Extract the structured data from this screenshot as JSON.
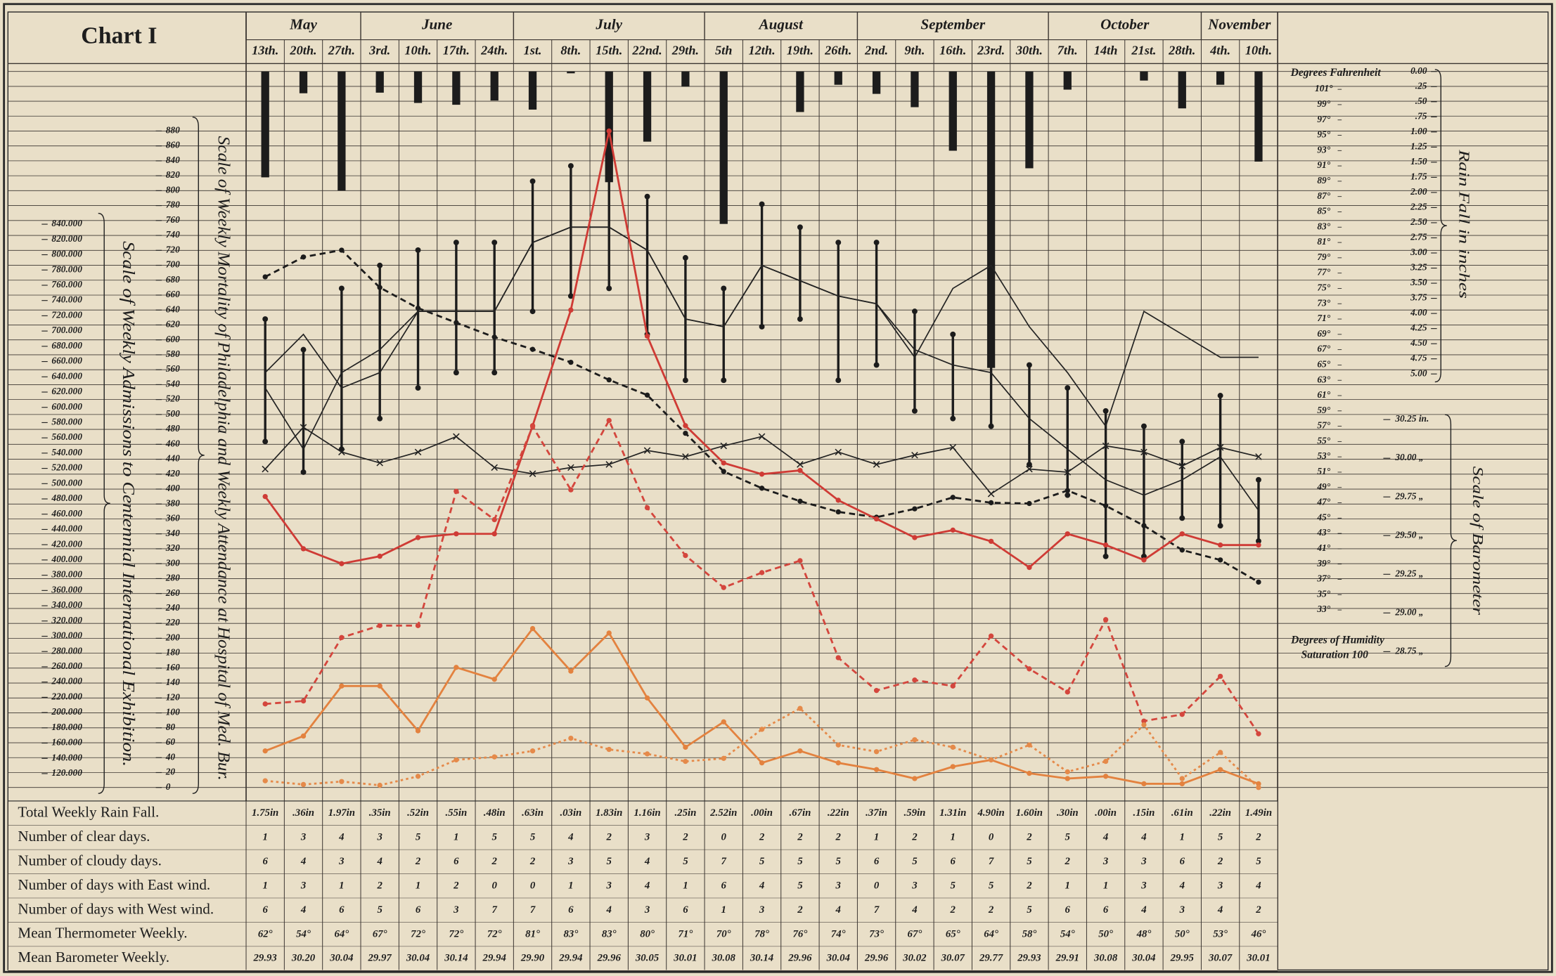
{
  "chart_data": {
    "type": "line",
    "title": "Chart I",
    "months": [
      {
        "name": "May",
        "weeks": 3
      },
      {
        "name": "June",
        "weeks": 4
      },
      {
        "name": "July",
        "weeks": 5
      },
      {
        "name": "August",
        "weeks": 4
      },
      {
        "name": "September",
        "weeks": 5
      },
      {
        "name": "October",
        "weeks": 4
      },
      {
        "name": "November",
        "weeks": 2
      }
    ],
    "categories": [
      "13th.",
      "20th.",
      "27th.",
      "3rd.",
      "10th.",
      "17th.",
      "24th.",
      "1st.",
      "8th.",
      "15th.",
      "22nd.",
      "29th.",
      "5th",
      "12th.",
      "19th.",
      "26th.",
      "2nd.",
      "9th.",
      "16th.",
      "23rd.",
      "30th.",
      "7th.",
      "14th",
      "21st.",
      "28th.",
      "4th.",
      "10th."
    ],
    "axes": {
      "mortality": {
        "title": "Scale of Weekly Mortality of Philadelphia and Weekly Attendance at Hospital of Med. Bur.",
        "lim": [
          0,
          880
        ],
        "ticks": [
          880,
          860,
          840,
          820,
          800,
          780,
          760,
          740,
          720,
          700,
          680,
          660,
          640,
          620,
          600,
          580,
          560,
          540,
          520,
          500,
          480,
          460,
          440,
          420,
          400,
          380,
          360,
          340,
          320,
          300,
          280,
          260,
          240,
          220,
          200,
          180,
          160,
          140,
          120,
          100,
          80,
          60,
          40,
          20,
          0
        ]
      },
      "admissions": {
        "title": "Scale of Weekly Admissions to Centennial International Exhibition.",
        "lim": [
          120000,
          840000
        ],
        "ticks": [
          {
            "value": 840000,
            "label": "840.000"
          },
          {
            "value": 820000,
            "label": "820.000"
          },
          {
            "value": 800000,
            "label": "800.000"
          },
          {
            "value": 780000,
            "label": "780.000"
          },
          {
            "value": 760000,
            "label": "760.000"
          },
          {
            "value": 740000,
            "label": "740.000"
          },
          {
            "value": 720000,
            "label": "720.000"
          },
          {
            "value": 700000,
            "label": "700.000"
          },
          {
            "value": 680000,
            "label": "680.000"
          },
          {
            "value": 660000,
            "label": "660.000"
          },
          {
            "value": 640000,
            "label": "640.000"
          },
          {
            "value": 620000,
            "label": "620.000"
          },
          {
            "value": 600000,
            "label": "600.000"
          },
          {
            "value": 580000,
            "label": "580.000"
          },
          {
            "value": 560000,
            "label": "560.000"
          },
          {
            "value": 540000,
            "label": "540.000"
          },
          {
            "value": 520000,
            "label": "520.000"
          },
          {
            "value": 500000,
            "label": "500.000"
          },
          {
            "value": 480000,
            "label": "480.000"
          },
          {
            "value": 460000,
            "label": "460.000"
          },
          {
            "value": 440000,
            "label": "440.000"
          },
          {
            "value": 420000,
            "label": "420.000"
          },
          {
            "value": 400000,
            "label": "400.000"
          },
          {
            "value": 380000,
            "label": "380.000"
          },
          {
            "value": 360000,
            "label": "360.000"
          },
          {
            "value": 340000,
            "label": "340.000"
          },
          {
            "value": 320000,
            "label": "320.000"
          },
          {
            "value": 300000,
            "label": "300.000"
          },
          {
            "value": 280000,
            "label": "280.000"
          },
          {
            "value": 260000,
            "label": "260.000"
          },
          {
            "value": 240000,
            "label": "240.000"
          },
          {
            "value": 220000,
            "label": "220.000"
          },
          {
            "value": 200000,
            "label": "200.000"
          },
          {
            "value": 180000,
            "label": "180.000"
          },
          {
            "value": 160000,
            "label": "160.000"
          },
          {
            "value": 140000,
            "label": "140.000"
          },
          {
            "value": 120000,
            "label": "120.000"
          }
        ]
      },
      "fahrenheit": {
        "title": "Degrees Fahrenheit",
        "lim": [
          33,
          101
        ],
        "ticks": [
          {
            "value": 101,
            "label": "101°"
          },
          {
            "value": 99,
            "label": "99°"
          },
          {
            "value": 97,
            "label": "97°"
          },
          {
            "value": 95,
            "label": "95°"
          },
          {
            "value": 93,
            "label": "93°"
          },
          {
            "value": 91,
            "label": "91°"
          },
          {
            "value": 89,
            "label": "89°"
          },
          {
            "value": 87,
            "label": "87°"
          },
          {
            "value": 85,
            "label": "85°"
          },
          {
            "value": 83,
            "label": "83°"
          },
          {
            "value": 81,
            "label": "81°"
          },
          {
            "value": 79,
            "label": "79°"
          },
          {
            "value": 77,
            "label": "77°"
          },
          {
            "value": 75,
            "label": "75°"
          },
          {
            "value": 73,
            "label": "73°"
          },
          {
            "value": 71,
            "label": "71°"
          },
          {
            "value": 69,
            "label": "69°"
          },
          {
            "value": 67,
            "label": "67°"
          },
          {
            "value": 65,
            "label": "65°"
          },
          {
            "value": 63,
            "label": "63°"
          },
          {
            "value": 61,
            "label": "61°"
          },
          {
            "value": 59,
            "label": "59°"
          },
          {
            "value": 57,
            "label": "57°"
          },
          {
            "value": 55,
            "label": "55°"
          },
          {
            "value": 53,
            "label": "53°"
          },
          {
            "value": 51,
            "label": "51°"
          },
          {
            "value": 49,
            "label": "49°"
          },
          {
            "value": 47,
            "label": "47°"
          },
          {
            "value": 45,
            "label": "45°"
          },
          {
            "value": 43,
            "label": "43°"
          },
          {
            "value": 41,
            "label": "41°"
          },
          {
            "value": 39,
            "label": "39°"
          },
          {
            "value": 37,
            "label": "37°"
          },
          {
            "value": 35,
            "label": "35°"
          },
          {
            "value": 33,
            "label": "33°"
          }
        ]
      },
      "rain": {
        "title": "Rain Fall in inches",
        "lim": [
          0,
          5
        ],
        "ticks": [
          {
            "value": 0,
            "label": "0.00"
          },
          {
            "value": 0.25,
            "label": ".25"
          },
          {
            "value": 0.5,
            "label": ".50"
          },
          {
            "value": 0.75,
            "label": ".75"
          },
          {
            "value": 1,
            "label": "1.00"
          },
          {
            "value": 1.25,
            "label": "1.25"
          },
          {
            "value": 1.5,
            "label": "1.50"
          },
          {
            "value": 1.75,
            "label": "1.75"
          },
          {
            "value": 2,
            "label": "2.00"
          },
          {
            "value": 2.25,
            "label": "2.25"
          },
          {
            "value": 2.5,
            "label": "2.50"
          },
          {
            "value": 2.75,
            "label": "2.75"
          },
          {
            "value": 3,
            "label": "3.00"
          },
          {
            "value": 3.25,
            "label": "3.25"
          },
          {
            "value": 3.5,
            "label": "3.50"
          },
          {
            "value": 3.75,
            "label": "3.75"
          },
          {
            "value": 4,
            "label": "4.00"
          },
          {
            "value": 4.25,
            "label": "4.25"
          },
          {
            "value": 4.5,
            "label": "4.50"
          },
          {
            "value": 4.75,
            "label": "4.75"
          },
          {
            "value": 5,
            "label": "5.00"
          }
        ]
      },
      "barometer": {
        "title": "Scale of Barometer",
        "lim": [
          28.75,
          30.25
        ],
        "ticks": [
          {
            "value": 30.25,
            "label": "30.25 in."
          },
          {
            "value": 30,
            "label": "30.00 „"
          },
          {
            "value": 29.75,
            "label": "29.75 „"
          },
          {
            "value": 29.5,
            "label": "29.50 „"
          },
          {
            "value": 29.25,
            "label": "29.25 „"
          },
          {
            "value": 29,
            "label": "29.00 „"
          },
          {
            "value": 28.75,
            "label": "28.75 „"
          }
        ]
      }
    },
    "humidity_caption": [
      "Degrees of Humidity",
      "Saturation 100"
    ],
    "series": [
      {
        "type": "bar",
        "axis": "rain",
        "color": "#1c1c1c",
        "values": [
          1.75,
          0.36,
          1.97,
          0.35,
          0.52,
          0.55,
          0.48,
          0.63,
          0.03,
          1.83,
          1.16,
          0.25,
          2.52,
          0,
          0.67,
          0.22,
          0.37,
          0.59,
          1.31,
          4.9,
          1.6,
          0.3,
          0,
          0.15,
          0.61,
          0.22,
          1.49
        ]
      },
      {
        "type": "range",
        "axis": "fahrenheit",
        "color": "#1c1c1c",
        "high": [
          71,
          67,
          75,
          78,
          80,
          81,
          81,
          89,
          91,
          95,
          87,
          79,
          75,
          86,
          83,
          81,
          81,
          72,
          69,
          69,
          65,
          62,
          59,
          57,
          55,
          61,
          50
        ],
        "low": [
          55,
          51,
          54,
          58,
          62,
          64,
          64,
          72,
          74,
          75,
          69,
          63,
          63,
          70,
          71,
          63,
          65,
          59,
          58,
          57,
          52,
          48,
          40,
          40,
          45,
          44,
          42
        ]
      },
      {
        "type": "line",
        "axis": "fahrenheit",
        "color": "#222222",
        "style": "solid",
        "marker": "none",
        "values": [
          62,
          54,
          64,
          67,
          72,
          72,
          72,
          81,
          83,
          83,
          80,
          71,
          70,
          78,
          76,
          74,
          73,
          67,
          65,
          64,
          58,
          54,
          50,
          48,
          50,
          53,
          46
        ]
      },
      {
        "type": "line",
        "axis": "fahrenheit",
        "color": "#222222",
        "style": "solid",
        "marker": "none",
        "values": [
          64,
          69,
          62,
          64,
          72,
          72,
          72,
          81,
          83,
          83,
          80,
          71,
          70,
          78,
          76,
          74,
          73,
          66,
          75,
          78,
          70,
          64,
          57,
          72,
          69,
          66,
          66
        ]
      },
      {
        "type": "line",
        "axis": "barometer",
        "color": "#222222",
        "style": "solid",
        "marker": "x",
        "values": [
          29.93,
          30.2,
          30.04,
          29.97,
          30.04,
          30.14,
          29.94,
          29.9,
          29.94,
          29.96,
          30.05,
          30.01,
          30.08,
          30.14,
          29.96,
          30.04,
          29.96,
          30.02,
          30.07,
          29.77,
          29.93,
          29.91,
          30.08,
          30.04,
          29.95,
          30.07,
          30.01
        ]
      },
      {
        "type": "line",
        "axis": "admissions",
        "color": "#1c1c1c",
        "style": "dashed",
        "marker": "dot",
        "values": [
          771000,
          797000,
          806000,
          757000,
          730000,
          711000,
          692000,
          676000,
          659000,
          636000,
          616000,
          566000,
          516000,
          494000,
          477000,
          463000,
          456000,
          467000,
          482000,
          475000,
          474000,
          491000,
          471000,
          445000,
          413000,
          400000,
          371000
        ]
      },
      {
        "type": "line",
        "axis": "mortality",
        "color": "#cf3b35",
        "style": "solid",
        "marker": "dot",
        "values": [
          390,
          320,
          300,
          310,
          335,
          340,
          340,
          485,
          640,
          880,
          605,
          485,
          435,
          420,
          425,
          385,
          360,
          335,
          345,
          330,
          295,
          340,
          325,
          305,
          340,
          325,
          325
        ]
      },
      {
        "type": "line",
        "axis": "mortality",
        "color": "#d4463d",
        "style": "dashed",
        "marker": "dot",
        "values": [
          112,
          116,
          201,
          217,
          217,
          397,
          359,
          484,
          399,
          492,
          375,
          311,
          268,
          288,
          304,
          174,
          130,
          144,
          136,
          203,
          159,
          128,
          225,
          89,
          98,
          149,
          72
        ]
      },
      {
        "type": "line",
        "axis": "mortality",
        "color": "#e3823f",
        "style": "solid",
        "marker": "dot",
        "values": [
          49,
          69,
          136,
          136,
          76,
          161,
          145,
          213,
          156,
          207,
          120,
          54,
          88,
          33,
          49,
          33,
          24,
          12,
          28,
          37,
          19,
          12,
          15,
          5,
          5,
          24,
          5
        ]
      },
      {
        "type": "line",
        "axis": "mortality",
        "color": "#e58a4a",
        "style": "dotted",
        "marker": "dot",
        "values": [
          9,
          4,
          8,
          3,
          15,
          37,
          41,
          49,
          66,
          51,
          45,
          35,
          39,
          78,
          106,
          57,
          48,
          64,
          54,
          37,
          57,
          21,
          35,
          84,
          12,
          47,
          0
        ]
      }
    ]
  },
  "table": {
    "row_labels": [
      "Total Weekly Rain Fall.",
      "Number of clear days.",
      "Number of cloudy days.",
      "Number of days with East wind.",
      "Number of days with West wind.",
      "Mean Thermometer Weekly.",
      "Mean Barometer Weekly."
    ],
    "rows": [
      [
        "1.75in",
        ".36in",
        "1.97in",
        ".35in",
        ".52in",
        ".55in",
        ".48in",
        ".63in",
        ".03in",
        "1.83in",
        "1.16in",
        ".25in",
        "2.52in",
        ".00in",
        ".67in",
        ".22in",
        ".37in",
        ".59in",
        "1.31in",
        "4.90in",
        "1.60in",
        ".30in",
        ".00in",
        ".15in",
        ".61in",
        ".22in",
        "1.49in"
      ],
      [
        1,
        3,
        4,
        3,
        5,
        1,
        5,
        5,
        4,
        2,
        3,
        2,
        0,
        2,
        2,
        2,
        1,
        2,
        1,
        0,
        2,
        5,
        4,
        4,
        1,
        5,
        2
      ],
      [
        6,
        4,
        3,
        4,
        2,
        6,
        2,
        2,
        3,
        5,
        4,
        5,
        7,
        5,
        5,
        5,
        6,
        5,
        6,
        7,
        5,
        2,
        3,
        3,
        6,
        2,
        5
      ],
      [
        1,
        3,
        1,
        2,
        1,
        2,
        0,
        0,
        1,
        3,
        4,
        1,
        6,
        4,
        5,
        3,
        0,
        3,
        5,
        5,
        2,
        1,
        1,
        3,
        4,
        3,
        4
      ],
      [
        6,
        4,
        6,
        5,
        6,
        3,
        7,
        7,
        6,
        4,
        3,
        6,
        1,
        3,
        2,
        4,
        7,
        4,
        2,
        2,
        5,
        6,
        6,
        4,
        3,
        4,
        2
      ],
      [
        "62°",
        "54°",
        "64°",
        "67°",
        "72°",
        "72°",
        "72°",
        "81°",
        "83°",
        "83°",
        "80°",
        "71°",
        "70°",
        "78°",
        "76°",
        "74°",
        "73°",
        "67°",
        "65°",
        "64°",
        "58°",
        "54°",
        "50°",
        "48°",
        "50°",
        "53°",
        "46°"
      ],
      [
        "29.93",
        "30.20",
        "30.04",
        "29.97",
        "30.04",
        "30.14",
        "29.94",
        "29.90",
        "29.94",
        "29.96",
        "30.05",
        "30.01",
        "30.08",
        "30.14",
        "29.96",
        "30.04",
        "29.96",
        "30.02",
        "30.07",
        "29.77",
        "29.93",
        "29.91",
        "30.08",
        "30.04",
        "29.95",
        "30.07",
        "30.01"
      ]
    ]
  }
}
